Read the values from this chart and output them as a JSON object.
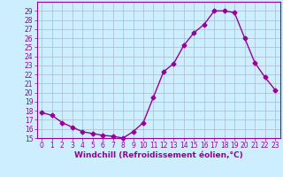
{
  "x": [
    0,
    1,
    2,
    3,
    4,
    5,
    6,
    7,
    8,
    9,
    10,
    11,
    12,
    13,
    14,
    15,
    16,
    17,
    18,
    19,
    20,
    21,
    22,
    23
  ],
  "y": [
    17.8,
    17.5,
    16.7,
    16.2,
    15.7,
    15.5,
    15.3,
    15.2,
    15.0,
    15.7,
    16.7,
    19.5,
    22.3,
    23.2,
    25.2,
    26.6,
    27.5,
    29.0,
    29.0,
    28.8,
    26.0,
    23.3,
    21.7,
    20.3
  ],
  "line_color": "#990099",
  "marker": "D",
  "marker_size": 2.5,
  "linewidth": 1.0,
  "xlabel": "Windchill (Refroidissement éolien,°C)",
  "ylim": [
    15,
    30
  ],
  "ytick_min": 15,
  "ytick_max": 29,
  "ytick_step": 1,
  "xtick_labels": [
    "0",
    "1",
    "2",
    "3",
    "4",
    "5",
    "6",
    "7",
    "8",
    "9",
    "10",
    "11",
    "12",
    "13",
    "14",
    "15",
    "16",
    "17",
    "18",
    "19",
    "20",
    "21",
    "22",
    "23"
  ],
  "bg_color": "#cceeff",
  "grid_color": "#aabbcc",
  "xlabel_fontsize": 6.5,
  "tick_fontsize": 5.5
}
